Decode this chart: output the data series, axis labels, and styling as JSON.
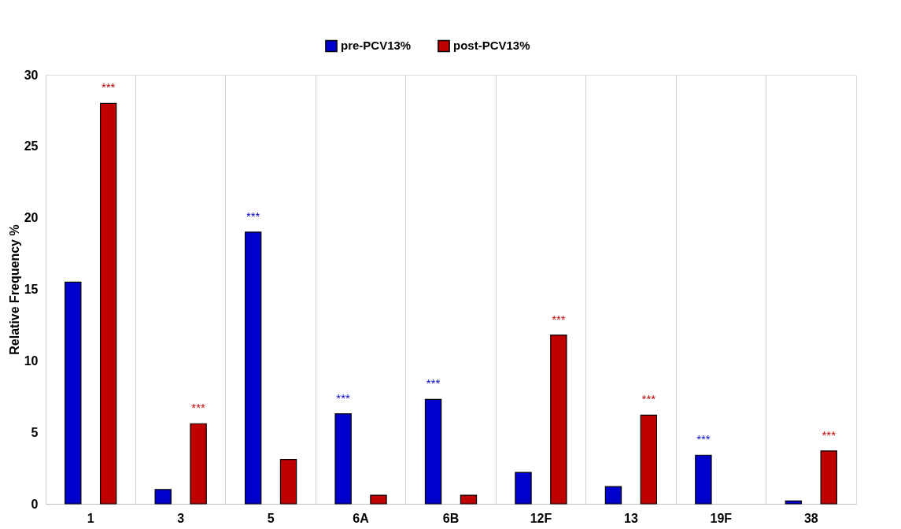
{
  "chart_data": {
    "type": "bar",
    "ylabel": "Relative Frequency %",
    "categories": [
      "1",
      "3",
      "5",
      "6A",
      "6B",
      "12F",
      "13",
      "19F",
      "38"
    ],
    "series": [
      {
        "name": "pre-PCV13%",
        "color": "#0000cc",
        "values": [
          15.5,
          1.0,
          19.0,
          6.3,
          7.3,
          2.2,
          1.2,
          3.4,
          0.2
        ]
      },
      {
        "name": "post-PCV13%",
        "color": "#c00000",
        "values": [
          28.0,
          5.6,
          3.1,
          0.6,
          0.6,
          11.8,
          6.2,
          null,
          3.7
        ]
      }
    ],
    "ylim": [
      0,
      30
    ],
    "yticks": [
      0,
      5,
      10,
      15,
      20,
      25,
      30
    ],
    "grid": "x",
    "legend": "top",
    "annotations": [
      "***",
      "***",
      "***",
      "***",
      "***",
      "***",
      "***",
      "***",
      "***"
    ]
  }
}
